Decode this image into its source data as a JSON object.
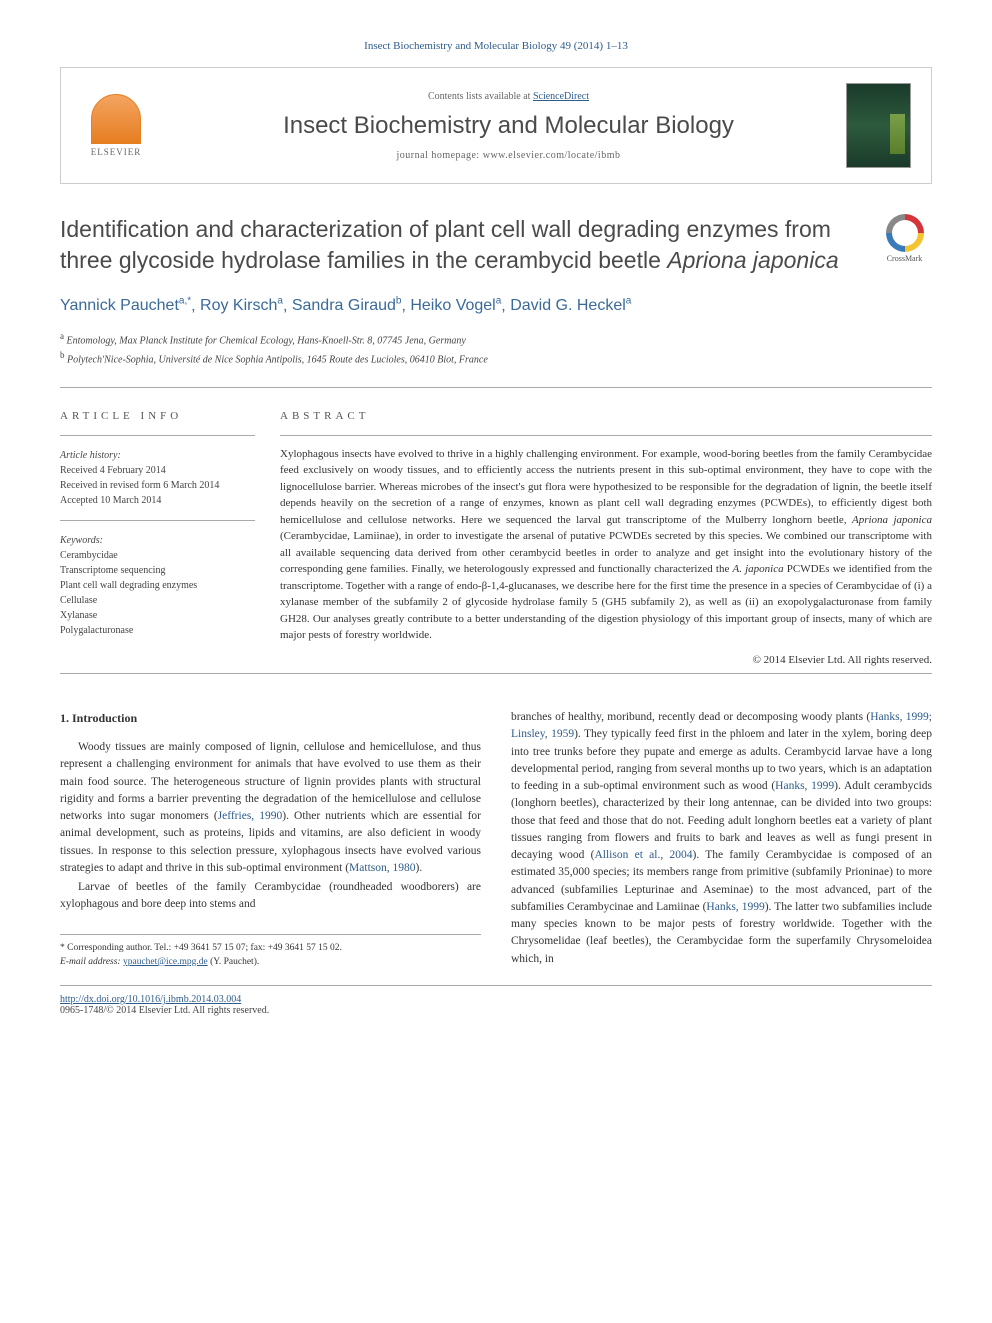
{
  "citation": "Insect Biochemistry and Molecular Biology 49 (2014) 1–13",
  "header": {
    "contents_prefix": "Contents lists available at ",
    "contents_link": "ScienceDirect",
    "journal": "Insect Biochemistry and Molecular Biology",
    "homepage_prefix": "journal homepage: ",
    "homepage_url": "www.elsevier.com/locate/ibmb",
    "publisher": "ELSEVIER"
  },
  "crossmark": "CrossMark",
  "title_parts": {
    "pre": "Identification and characterization of plant cell wall degrading enzymes from three glycoside hydrolase families in the cerambycid beetle ",
    "species": "Apriona japonica"
  },
  "authors_html_parts": [
    {
      "name": "Yannick Pauchet",
      "sup": "a,*"
    },
    {
      "name": "Roy Kirsch",
      "sup": "a"
    },
    {
      "name": "Sandra Giraud",
      "sup": "b"
    },
    {
      "name": "Heiko Vogel",
      "sup": "a"
    },
    {
      "name": "David G. Heckel",
      "sup": "a"
    }
  ],
  "affiliations": [
    {
      "sup": "a",
      "text": "Entomology, Max Planck Institute for Chemical Ecology, Hans-Knoell-Str. 8, 07745 Jena, Germany"
    },
    {
      "sup": "b",
      "text": "Polytech'Nice-Sophia, Université de Nice Sophia Antipolis, 1645 Route des Lucioles, 06410 Biot, France"
    }
  ],
  "article_info": {
    "heading": "ARTICLE INFO",
    "history_label": "Article history:",
    "received": "Received 4 February 2014",
    "revised": "Received in revised form 6 March 2014",
    "accepted": "Accepted 10 March 2014",
    "keywords_label": "Keywords:",
    "keywords": [
      "Cerambycidae",
      "Transcriptome sequencing",
      "Plant cell wall degrading enzymes",
      "Cellulase",
      "Xylanase",
      "Polygalacturonase"
    ]
  },
  "abstract": {
    "heading": "ABSTRACT",
    "text": "Xylophagous insects have evolved to thrive in a highly challenging environment. For example, wood-boring beetles from the family Cerambycidae feed exclusively on woody tissues, and to efficiently access the nutrients present in this sub-optimal environment, they have to cope with the lignocellulose barrier. Whereas microbes of the insect's gut flora were hypothesized to be responsible for the degradation of lignin, the beetle itself depends heavily on the secretion of a range of enzymes, known as plant cell wall degrading enzymes (PCWDEs), to efficiently digest both hemicellulose and cellulose networks. Here we sequenced the larval gut transcriptome of the Mulberry longhorn beetle, Apriona japonica (Cerambycidae, Lamiinae), in order to investigate the arsenal of putative PCWDEs secreted by this species. We combined our transcriptome with all available sequencing data derived from other cerambycid beetles in order to analyze and get insight into the evolutionary history of the corresponding gene families. Finally, we heterologously expressed and functionally characterized the A. japonica PCWDEs we identified from the transcriptome. Together with a range of endo-β-1,4-glucanases, we describe here for the first time the presence in a species of Cerambycidae of (i) a xylanase member of the subfamily 2 of glycoside hydrolase family 5 (GH5 subfamily 2), as well as (ii) an exopolygalacturonase from family GH28. Our analyses greatly contribute to a better understanding of the digestion physiology of this important group of insects, many of which are major pests of forestry worldwide.",
    "copyright": "© 2014 Elsevier Ltd. All rights reserved."
  },
  "body": {
    "section_heading": "1. Introduction",
    "col1_p1": "Woody tissues are mainly composed of lignin, cellulose and hemicellulose, and thus represent a challenging environment for animals that have evolved to use them as their main food source. The heterogeneous structure of lignin provides plants with structural rigidity and forms a barrier preventing the degradation of the hemicellulose and cellulose networks into sugar monomers (Jeffries, 1990). Other nutrients which are essential for animal development, such as proteins, lipids and vitamins, are also deficient in woody tissues. In response to this selection pressure, xylophagous insects have evolved various strategies to adapt and thrive in this sub-optimal environment (Mattson, 1980).",
    "col1_p2": "Larvae of beetles of the family Cerambycidae (roundheaded woodborers) are xylophagous and bore deep into stems and",
    "col2_p1": "branches of healthy, moribund, recently dead or decomposing woody plants (Hanks, 1999; Linsley, 1959). They typically feed first in the phloem and later in the xylem, boring deep into tree trunks before they pupate and emerge as adults. Cerambycid larvae have a long developmental period, ranging from several months up to two years, which is an adaptation to feeding in a sub-optimal environment such as wood (Hanks, 1999). Adult cerambycids (longhorn beetles), characterized by their long antennae, can be divided into two groups: those that feed and those that do not. Feeding adult longhorn beetles eat a variety of plant tissues ranging from flowers and fruits to bark and leaves as well as fungi present in decaying wood (Allison et al., 2004). The family Cerambycidae is composed of an estimated 35,000 species; its members range from primitive (subfamily Prioninae) to more advanced (subfamilies Lepturinae and Aseminae) to the most advanced, part of the subfamilies Cerambycinae and Lamiinae (Hanks, 1999). The latter two subfamilies include many species known to be major pests of forestry worldwide. Together with the Chrysomelidae (leaf beetles), the Cerambycidae form the superfamily Chrysomeloidea which, in"
  },
  "corresponding": {
    "star": "*",
    "label": "Corresponding author. Tel.: +49 3641 57 15 07; fax: +49 3641 57 15 02.",
    "email_label": "E-mail address:",
    "email": "ypauchet@ice.mpg.de",
    "email_suffix": "(Y. Pauchet)."
  },
  "footer": {
    "doi": "http://dx.doi.org/10.1016/j.ibmb.2014.03.004",
    "issn_copyright": "0965-1748/© 2014 Elsevier Ltd. All rights reserved."
  },
  "colors": {
    "link": "#2e5c8a",
    "text": "#333333",
    "heading": "#4a4a4a"
  }
}
